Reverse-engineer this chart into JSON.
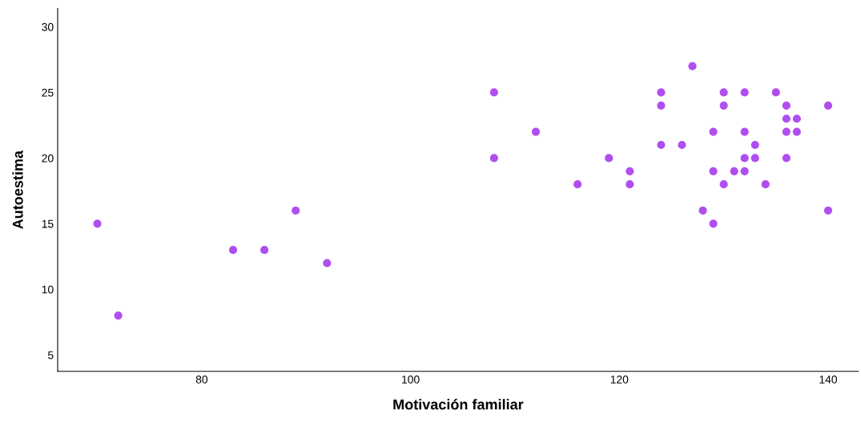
{
  "chart_data": {
    "type": "scatter",
    "xlabel": "Motivación familiar",
    "ylabel": "Autoestima",
    "x": [
      70,
      72,
      83,
      86,
      89,
      92,
      108,
      108,
      112,
      116,
      119,
      121,
      121,
      124,
      124,
      124,
      126,
      127,
      128,
      129,
      129,
      129,
      130,
      130,
      130,
      131,
      132,
      132,
      132,
      132,
      133,
      133,
      134,
      135,
      136,
      136,
      136,
      136,
      137,
      137,
      140,
      140
    ],
    "series": [
      {
        "color": "#b04ef0",
        "values": [
          15,
          8,
          13,
          13,
          16,
          12,
          25,
          20,
          22,
          18,
          20,
          19,
          18,
          25,
          24,
          21,
          21,
          27,
          16,
          22,
          19,
          15,
          25,
          24,
          18,
          19,
          25,
          22,
          20,
          19,
          21,
          20,
          18,
          25,
          24,
          23,
          22,
          20,
          23,
          22,
          24,
          16
        ]
      }
    ],
    "xlim": [
      66.2,
      142.9
    ],
    "ylim": [
      3.75,
      31.4
    ],
    "xticks": [
      80,
      100,
      120,
      140
    ],
    "yticks": [
      5,
      10,
      15,
      20,
      25,
      30
    ],
    "marker": "circle",
    "grid": false,
    "legend": false
  }
}
